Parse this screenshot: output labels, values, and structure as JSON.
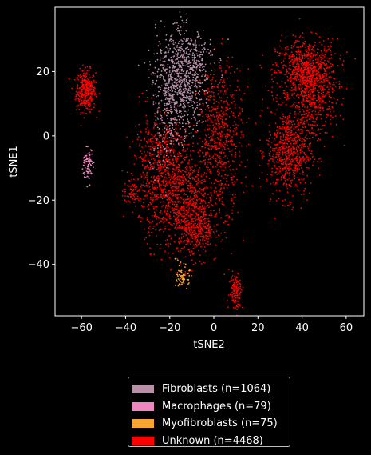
{
  "chart_data": {
    "type": "scatter",
    "title": "",
    "xlabel": "tSNE2",
    "ylabel": "tSNE1",
    "xlim": [
      -72,
      68
    ],
    "ylim": [
      -56,
      40
    ],
    "xticks": [
      -60,
      -40,
      -20,
      0,
      20,
      40,
      60
    ],
    "yticks": [
      -40,
      -20,
      0,
      20
    ],
    "grid": false,
    "legend_position": "below",
    "series": [
      {
        "name": "Fibroblasts (n=1064)",
        "color": "#b890a8",
        "clusters": [
          {
            "center": [
              -14,
              16
            ],
            "spread": [
              5,
              8
            ],
            "count": 650
          },
          {
            "center": [
              -22,
              10
            ],
            "spread": [
              4,
              10
            ],
            "count": 250
          },
          {
            "center": [
              -10,
              24
            ],
            "spread": [
              5,
              5
            ],
            "count": 164
          }
        ]
      },
      {
        "name": "Macrophages (n=79)",
        "color": "#f086c0",
        "clusters": [
          {
            "center": [
              -57,
              -9
            ],
            "spread": [
              1.2,
              2.5
            ],
            "count": 79
          }
        ]
      },
      {
        "name": "Myofibroblasts (n=75)",
        "color": "#f7a431",
        "clusters": [
          {
            "center": [
              -14,
              -44
            ],
            "spread": [
              1.5,
              1.8
            ],
            "count": 75
          }
        ]
      },
      {
        "name": "Unknown (n=4468)",
        "color": "#ff0000",
        "clusters": [
          {
            "center": [
              -58,
              14
            ],
            "spread": [
              2.2,
              3.2
            ],
            "count": 330
          },
          {
            "center": [
              42,
              20
            ],
            "spread": [
              7,
              5
            ],
            "count": 800
          },
          {
            "center": [
              34,
              -5
            ],
            "spread": [
              5,
              7
            ],
            "count": 650
          },
          {
            "center": [
              45,
              10
            ],
            "spread": [
              5,
              6
            ],
            "count": 300
          },
          {
            "center": [
              -18,
              -18
            ],
            "spread": [
              8,
              8
            ],
            "count": 900
          },
          {
            "center": [
              -8,
              -28
            ],
            "spread": [
              5,
              5
            ],
            "count": 400
          },
          {
            "center": [
              3,
              0
            ],
            "spread": [
              5,
              11
            ],
            "count": 600
          },
          {
            "center": [
              -25,
              -5
            ],
            "spread": [
              6,
              6
            ],
            "count": 300
          },
          {
            "center": [
              10,
              -48
            ],
            "spread": [
              1.5,
              3
            ],
            "count": 120
          },
          {
            "center": [
              -37,
              -17
            ],
            "spread": [
              2,
              2
            ],
            "count": 68
          }
        ]
      }
    ]
  }
}
